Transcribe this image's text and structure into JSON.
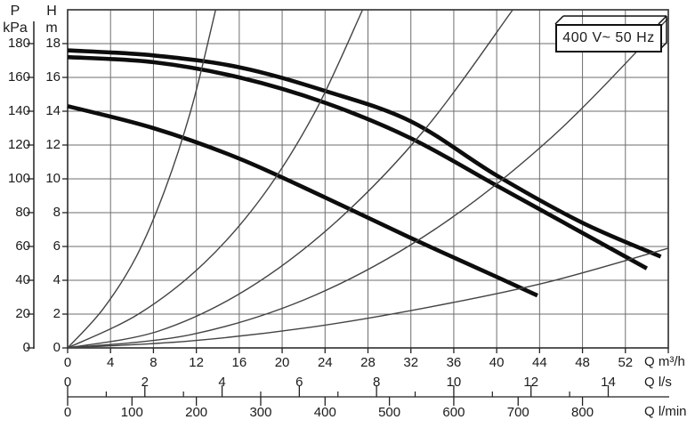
{
  "title_box": {
    "label": "400 V~ 50 Hz"
  },
  "axes": {
    "pressure": {
      "title": "P",
      "unit": "kPa",
      "ticks": [
        180,
        160,
        140,
        120,
        100,
        80,
        60,
        40,
        20,
        0
      ]
    },
    "head": {
      "title": "H",
      "unit": "m",
      "ticks": [
        18,
        16,
        14,
        12,
        10,
        8,
        6,
        4,
        2,
        0
      ]
    },
    "flow_m3h": {
      "unit_label": "Q m³/h",
      "ticks": [
        0,
        4,
        8,
        12,
        16,
        20,
        24,
        28,
        32,
        36,
        40,
        44,
        48,
        52
      ],
      "unlabeled_ticks": [
        56
      ]
    },
    "flow_ls": {
      "unit_label": "Q l/s",
      "ticks": [
        0,
        2,
        4,
        6,
        8,
        10,
        12,
        14
      ],
      "minor_ticks": [
        1,
        3,
        5,
        7,
        9,
        11,
        13
      ]
    },
    "flow_lmin": {
      "unit_label": "Q l/min",
      "ticks": [
        0,
        100,
        200,
        300,
        400,
        500,
        600,
        700,
        800
      ]
    }
  },
  "colors": {
    "grid": "#6e6e6e",
    "border": "#3a3a3a",
    "axis": "#222222",
    "pump_curve": "#0d0d0d",
    "system_curve": "#434343",
    "text": "#1b1b1b"
  },
  "chart_data": {
    "type": "line",
    "title": "400 V~ 50 Hz",
    "xlabel_primary": "Q m³/h",
    "xlabel_secondary": "Q l/s",
    "xlabel_tertiary": "Q l/min",
    "ylabel_primary": "H m",
    "ylabel_secondary": "P kPa",
    "xlim_m3h": [
      0,
      56
    ],
    "ylim_m": [
      0,
      20
    ],
    "ylim_kpa": [
      0,
      200
    ],
    "grid": {
      "x_values": [
        0,
        4,
        8,
        12,
        16,
        20,
        24,
        28,
        32,
        36,
        40,
        44,
        48,
        52,
        56
      ],
      "y_values": [
        0,
        2,
        4,
        6,
        8,
        10,
        12,
        14,
        16,
        18,
        20
      ]
    },
    "legend": "none",
    "series": [
      {
        "name": "pump-curve-1",
        "role": "pump",
        "points": [
          [
            0,
            17.6
          ],
          [
            8,
            17.3
          ],
          [
            16,
            16.6
          ],
          [
            24,
            15.2
          ],
          [
            32,
            13.4
          ],
          [
            40,
            10.2
          ],
          [
            48,
            7.4
          ],
          [
            55.3,
            5.4
          ]
        ]
      },
      {
        "name": "pump-curve-2",
        "role": "pump",
        "points": [
          [
            0,
            17.2
          ],
          [
            8,
            16.9
          ],
          [
            16,
            16.0
          ],
          [
            24,
            14.5
          ],
          [
            32,
            12.4
          ],
          [
            40,
            9.6
          ],
          [
            48,
            6.8
          ],
          [
            54,
            4.7
          ]
        ]
      },
      {
        "name": "pump-curve-3",
        "role": "pump",
        "points": [
          [
            0,
            14.3
          ],
          [
            8,
            13.0
          ],
          [
            16,
            11.2
          ],
          [
            24,
            8.9
          ],
          [
            32,
            6.5
          ],
          [
            40,
            4.2
          ],
          [
            43.8,
            3.1
          ]
        ]
      },
      {
        "name": "system-curve-1",
        "role": "system",
        "points": [
          [
            0,
            0
          ],
          [
            3.3,
            2.3
          ],
          [
            6.4,
            5.4
          ],
          [
            9.1,
            9.4
          ],
          [
            11.6,
            14.3
          ],
          [
            13.8,
            20
          ]
        ]
      },
      {
        "name": "system-curve-2",
        "role": "system",
        "points": [
          [
            0,
            0
          ],
          [
            6.6,
            2.0
          ],
          [
            12.7,
            5.0
          ],
          [
            18.2,
            9.0
          ],
          [
            23.1,
            14.0
          ],
          [
            27.5,
            20
          ]
        ]
      },
      {
        "name": "system-curve-3",
        "role": "system",
        "points": [
          [
            0,
            0
          ],
          [
            8.5,
            1.0
          ],
          [
            16.8,
            3.5
          ],
          [
            25.1,
            7.5
          ],
          [
            33.4,
            13.0
          ],
          [
            41.5,
            20
          ]
        ]
      },
      {
        "name": "system-curve-4",
        "role": "system",
        "points": [
          [
            0,
            0
          ],
          [
            11.6,
            0.8
          ],
          [
            23.0,
            3.1
          ],
          [
            34.2,
            7.0
          ],
          [
            45.2,
            12.5
          ],
          [
            56,
            19.5
          ]
        ]
      },
      {
        "name": "system-curve-5",
        "role": "system",
        "points": [
          [
            0,
            0
          ],
          [
            11.2,
            0.4
          ],
          [
            22.4,
            1.2
          ],
          [
            33.6,
            2.4
          ],
          [
            44.8,
            3.9
          ],
          [
            56,
            5.9
          ]
        ]
      }
    ]
  }
}
